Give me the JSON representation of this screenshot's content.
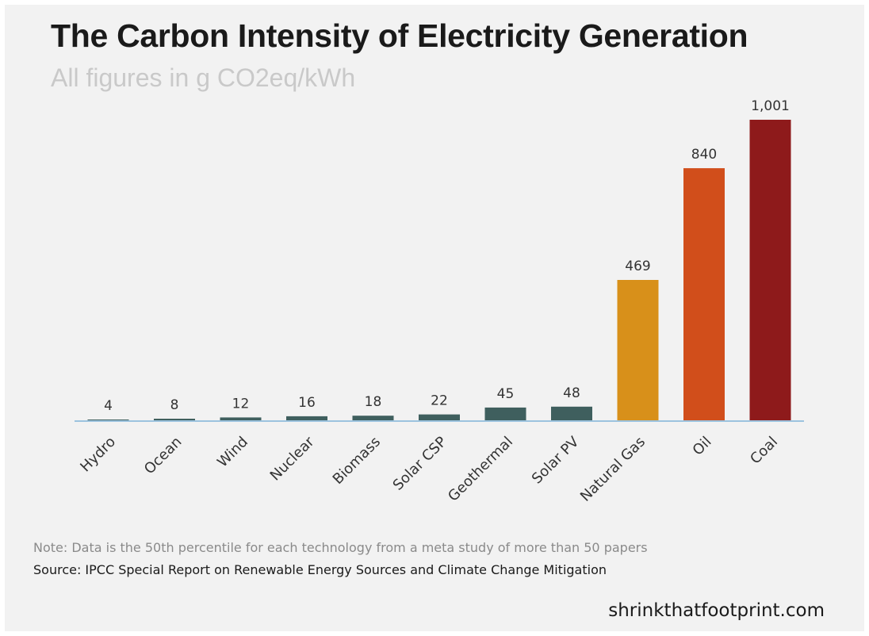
{
  "chart_data": {
    "type": "bar",
    "title": "The Carbon Intensity of Electricity Generation",
    "subtitle": "All figures in g CO2eq/kWh",
    "categories": [
      "Hydro",
      "Ocean",
      "Wind",
      "Nuclear",
      "Biomass",
      "Solar CSP",
      "Geothermal",
      "Solar PV",
      "Natural Gas",
      "Oil",
      "Coal"
    ],
    "values": [
      4,
      8,
      12,
      16,
      18,
      22,
      45,
      48,
      469,
      840,
      1001
    ],
    "value_labels": [
      "4",
      "8",
      "12",
      "16",
      "18",
      "22",
      "45",
      "48",
      "469",
      "840",
      "1,001"
    ],
    "colors": [
      "#3f5f5e",
      "#3f5f5e",
      "#3f5f5e",
      "#3f5f5e",
      "#3f5f5e",
      "#3f5f5e",
      "#3f5f5e",
      "#3f5f5e",
      "#d8901a",
      "#d14e1b",
      "#8e1a1b"
    ],
    "ylim": [
      0,
      1001
    ],
    "grid": false,
    "legend": "none",
    "baseline_color": "#9cc3df",
    "note": "Note: Data is the 50th percentile for each technology from a meta study of more than 50 papers",
    "source": "Source: IPCC Special Report on Renewable Energy Sources and Climate Change Mitigation",
    "brand": "shrinkthatfootprint.com"
  }
}
